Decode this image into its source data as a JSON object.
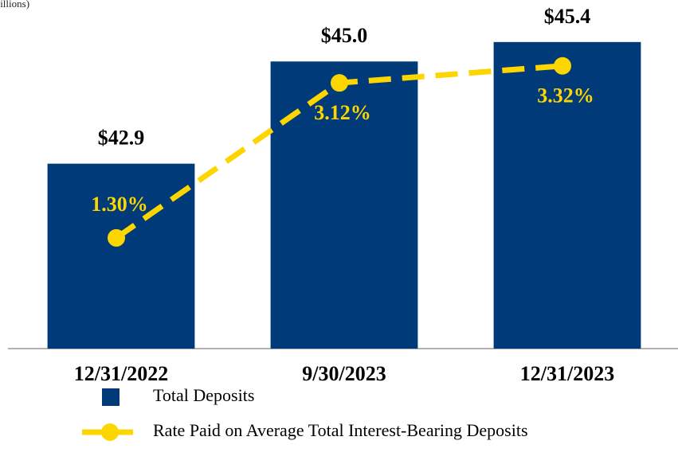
{
  "chart_data": {
    "type": "bar",
    "subtitle": "(in billions)",
    "categories": [
      "12/31/2022",
      "9/30/2023",
      "12/31/2023"
    ],
    "series": [
      {
        "name": "Total Deposits",
        "type": "bar",
        "color": "#003a78",
        "values": [
          42.9,
          45.0,
          45.4
        ],
        "value_labels": [
          "$42.9",
          "$45.0",
          "$45.4"
        ]
      },
      {
        "name": "Rate Paid on Average Total Interest-Bearing Deposits",
        "type": "line",
        "axis": "y2",
        "color": "#fdd600",
        "values": [
          1.3,
          3.12,
          3.32
        ],
        "value_labels": [
          "1.30%",
          "3.12%",
          "3.32%"
        ]
      }
    ],
    "ylim": [
      39.1,
      46.1
    ],
    "y2lim": [
      0,
      4.0
    ],
    "grid": false
  }
}
